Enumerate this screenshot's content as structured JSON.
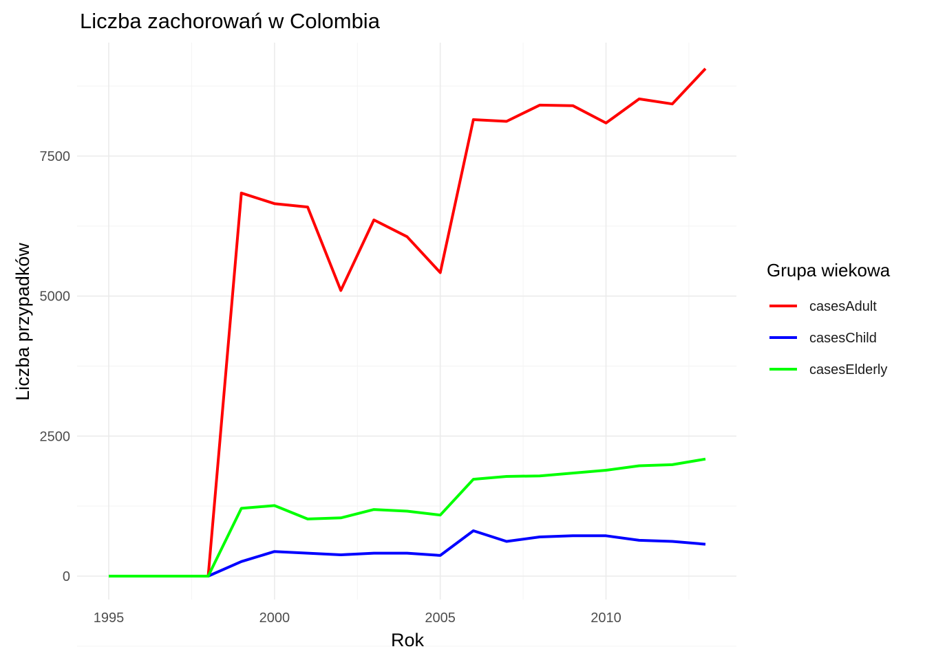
{
  "chart_data": {
    "type": "line",
    "title": "Liczba zachorowań w Colombia",
    "xlabel": "Rok",
    "ylabel": "Liczba przypadków",
    "xlim": [
      1995,
      2013
    ],
    "ylim": [
      -400,
      9300
    ],
    "x_ticks": [
      1995,
      2000,
      2005,
      2010
    ],
    "y_ticks": [
      0,
      2500,
      5000,
      7500
    ],
    "grid": true,
    "legend": {
      "title": "Grupa wiekowa",
      "position": "right"
    },
    "x": [
      1995,
      1996,
      1997,
      1998,
      1999,
      2000,
      2001,
      2002,
      2003,
      2004,
      2005,
      2006,
      2007,
      2008,
      2009,
      2010,
      2011,
      2012,
      2013
    ],
    "series": [
      {
        "name": "casesAdult",
        "color": "#ff0000",
        "values": [
          0,
          0,
          0,
          0,
          6840,
          6650,
          6590,
          5100,
          6360,
          6060,
          5420,
          8150,
          8120,
          8410,
          8400,
          8090,
          8520,
          8430,
          9060
        ]
      },
      {
        "name": "casesChild",
        "color": "#0000ff",
        "values": [
          0,
          0,
          0,
          0,
          260,
          440,
          410,
          380,
          410,
          410,
          370,
          810,
          620,
          700,
          720,
          720,
          640,
          620,
          570
        ]
      },
      {
        "name": "casesElderly",
        "color": "#00ff00",
        "values": [
          0,
          0,
          0,
          0,
          1210,
          1260,
          1020,
          1040,
          1190,
          1160,
          1090,
          1730,
          1780,
          1790,
          1840,
          1890,
          1970,
          1990,
          2090
        ]
      }
    ]
  }
}
